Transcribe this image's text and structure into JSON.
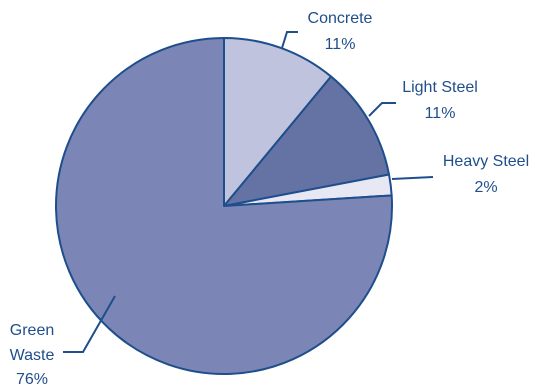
{
  "chart_data": {
    "type": "pie",
    "slices": [
      {
        "name": "Concrete",
        "value": 11,
        "value_label": "11%",
        "color": "#c0c3dd"
      },
      {
        "name": "Light Steel",
        "value": 11,
        "value_label": "11%",
        "color": "#6572a4"
      },
      {
        "name": "Heavy Steel",
        "value": 2,
        "value_label": "2%",
        "color": "#e8e8f4"
      },
      {
        "name": "Green",
        "name_line2": "Waste",
        "value": 76,
        "value_label": "76%",
        "color": "#7b86b6"
      }
    ],
    "edge_color": "#1f4e8c",
    "label_color": "#1f4e8c"
  }
}
